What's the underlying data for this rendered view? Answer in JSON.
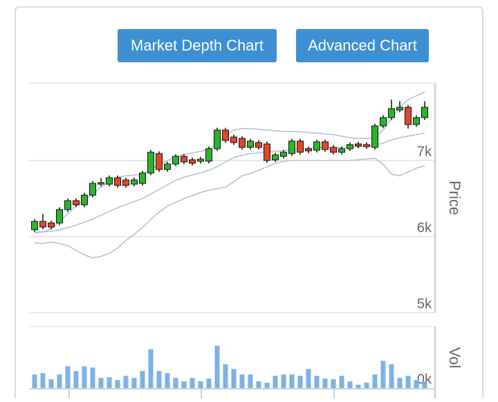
{
  "buttons": [
    "Market Depth Chart",
    "Advanced Chart"
  ],
  "chart_data": [
    {
      "type": "candlestick",
      "y_label": "Price",
      "ylim": [
        5000,
        8000
      ],
      "yticks": [
        {
          "value": 5000,
          "label": "5k"
        },
        {
          "value": 6000,
          "label": "6k"
        },
        {
          "value": 7000,
          "label": "7k"
        }
      ],
      "up_color": "#29b52c",
      "down_color": "#e0482a",
      "band_color": "#b3c3d4",
      "open": [
        6091,
        6200,
        6180,
        6180,
        6355,
        6473,
        6418,
        6545,
        6690,
        6690,
        6773,
        6745,
        6690,
        6700,
        6836,
        7091,
        6882,
        6955,
        7055,
        7010,
        6990,
        6991,
        7155,
        7400,
        7309,
        7291,
        7173,
        7236,
        7218,
        7009,
        7055,
        7091,
        7255,
        7155,
        7136,
        7245,
        7173,
        7109,
        7155,
        7218,
        7209,
        7173,
        7455,
        7564,
        7664,
        7700,
        7473,
        7564
      ],
      "close": [
        6200,
        6127,
        6127,
        6355,
        6473,
        6418,
        6545,
        6700,
        6710,
        6773,
        6673,
        6673,
        6745,
        6836,
        7109,
        6882,
        6955,
        7055,
        6982,
        6964,
        7018,
        7155,
        7400,
        7264,
        7236,
        7173,
        7255,
        7173,
        7000,
        7073,
        7109,
        7255,
        7109,
        7127,
        7245,
        7145,
        7109,
        7155,
        7209,
        7191,
        7182,
        7455,
        7564,
        7682,
        7700,
        7473,
        7564,
        7700
      ],
      "high": [
        6230,
        6300,
        6210,
        6385,
        6503,
        6503,
        6575,
        6730,
        6770,
        6803,
        6803,
        6775,
        6775,
        6866,
        7139,
        7121,
        6985,
        7085,
        7085,
        7040,
        7048,
        7185,
        7430,
        7430,
        7339,
        7321,
        7285,
        7266,
        7248,
        7103,
        7139,
        7285,
        7285,
        7185,
        7275,
        7275,
        7203,
        7185,
        7239,
        7248,
        7239,
        7485,
        7594,
        7800,
        7780,
        7730,
        7594,
        7780
      ],
      "low": [
        6061,
        6097,
        6097,
        6150,
        6325,
        6388,
        6388,
        6515,
        6660,
        6660,
        6643,
        6643,
        6660,
        6670,
        6806,
        6852,
        6852,
        6925,
        6952,
        6934,
        6960,
        6961,
        7125,
        7234,
        7206,
        7143,
        7143,
        7143,
        6970,
        6979,
        7025,
        7061,
        7079,
        7097,
        7106,
        7115,
        7079,
        7079,
        7125,
        7161,
        7152,
        7143,
        7425,
        7534,
        7634,
        7420,
        7443,
        7534
      ],
      "bands": [
        [
          6050,
          6060,
          6100,
          6200,
          6300,
          6400,
          6480,
          6560,
          6650,
          6720,
          6780,
          6800,
          6810,
          6820,
          6880,
          6950,
          7000,
          7050,
          7080,
          7100,
          7120,
          7150,
          7220,
          7330,
          7400,
          7420,
          7420,
          7410,
          7400,
          7390,
          7380,
          7380,
          7380,
          7370,
          7360,
          7350,
          7340,
          7320,
          7300,
          7290,
          7290,
          7300,
          7400,
          7550,
          7700,
          7800,
          7850,
          7900
        ],
        [
          6060,
          6065,
          6070,
          6090,
          6120,
          6150,
          6190,
          6230,
          6280,
          6330,
          6380,
          6420,
          6460,
          6500,
          6560,
          6620,
          6680,
          6740,
          6780,
          6810,
          6840,
          6870,
          6920,
          6980,
          7040,
          7070,
          7090,
          7100,
          7110,
          7120,
          7130,
          7140,
          7150,
          7160,
          7170,
          7170,
          7170,
          7170,
          7175,
          7180,
          7190,
          7200,
          7230,
          7270,
          7300,
          7320,
          7340,
          7360
        ],
        [
          5920,
          5910,
          5930,
          5910,
          5880,
          5820,
          5760,
          5720,
          5740,
          5780,
          5850,
          5950,
          6030,
          6120,
          6230,
          6320,
          6400,
          6450,
          6500,
          6540,
          6580,
          6610,
          6630,
          6650,
          6720,
          6800,
          6830,
          6870,
          6920,
          6960,
          6990,
          7000,
          7000,
          7000,
          7000,
          7000,
          7000,
          7000,
          7000,
          7010,
          7020,
          7030,
          6950,
          6820,
          6800,
          6850,
          6900,
          6930
        ]
      ]
    },
    {
      "type": "bar",
      "y_label": "Vol",
      "ylim": [
        0,
        90
      ],
      "yticks": [
        {
          "value": 0,
          "label": "0k"
        }
      ],
      "color": "#7eb2e6",
      "values": [
        20,
        22,
        13,
        20,
        32,
        25,
        32,
        30,
        15,
        16,
        12,
        18,
        15,
        25,
        57,
        25,
        22,
        15,
        10,
        15,
        10,
        14,
        62,
        35,
        28,
        20,
        20,
        10,
        8,
        18,
        20,
        20,
        18,
        28,
        18,
        14,
        13,
        18,
        10,
        5,
        8,
        20,
        40,
        35,
        15,
        18,
        12,
        10
      ]
    }
  ]
}
